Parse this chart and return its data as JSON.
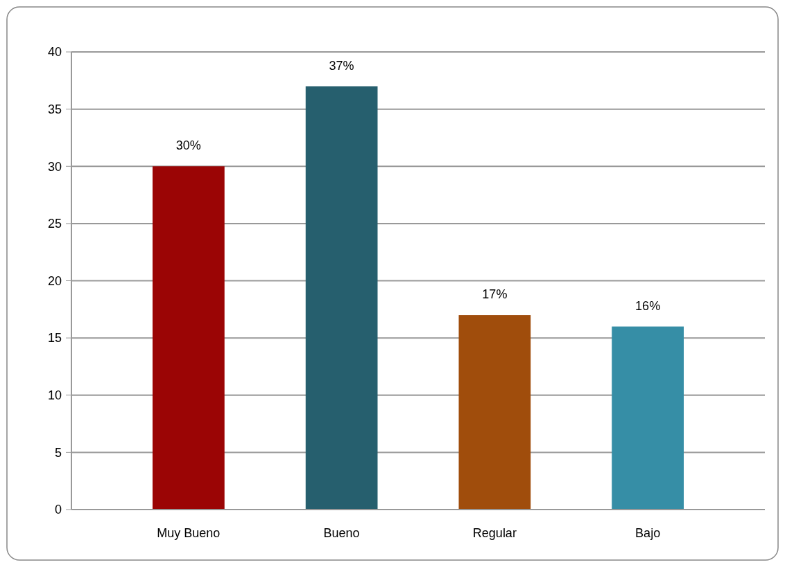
{
  "chart_data": {
    "type": "bar",
    "categories": [
      "Muy Bueno",
      "Bueno",
      "Regular",
      "Bajo"
    ],
    "values": [
      30,
      37,
      17,
      16
    ],
    "colors": [
      "#9b0505",
      "#265f6e",
      "#a04d0c",
      "#368ea6"
    ],
    "value_labels": [
      "30%",
      "37%",
      "17%",
      "16%"
    ],
    "ylim": [
      0,
      40
    ],
    "yticks": [
      0,
      5,
      10,
      15,
      20,
      25,
      30,
      35,
      40
    ],
    "grid": "y"
  }
}
